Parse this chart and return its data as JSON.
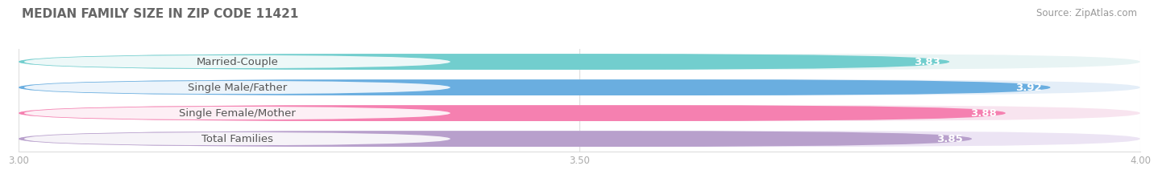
{
  "title": "MEDIAN FAMILY SIZE IN ZIP CODE 11421",
  "source": "Source: ZipAtlas.com",
  "categories": [
    "Married-Couple",
    "Single Male/Father",
    "Single Female/Mother",
    "Total Families"
  ],
  "values": [
    3.83,
    3.92,
    3.88,
    3.85
  ],
  "bar_colors": [
    "#72cece",
    "#6aaee0",
    "#f580b0",
    "#b8a0cc"
  ],
  "bar_bg_colors": [
    "#e8f4f4",
    "#e4eef8",
    "#f8e4ef",
    "#ece4f4"
  ],
  "xlim": [
    3.0,
    4.0
  ],
  "xmin": 3.0,
  "xmax": 4.0,
  "xticks": [
    3.0,
    3.5,
    4.0
  ],
  "xtick_labels": [
    "3.00",
    "3.50",
    "4.00"
  ],
  "label_fontsize": 9.5,
  "value_fontsize": 9.5,
  "title_fontsize": 11,
  "source_fontsize": 8.5,
  "bar_height": 0.62,
  "background_color": "#ffffff",
  "label_text_color": "#555555",
  "value_text_color": "#ffffff",
  "grid_color": "#dddddd"
}
